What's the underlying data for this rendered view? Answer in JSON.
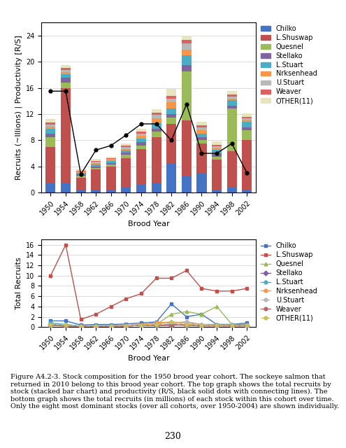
{
  "chart_data": [
    {
      "type": "bar",
      "stacked": true,
      "xlabel": "Brood Year",
      "ylabel": "Recruits (~Illions) | Productivity [R/S]",
      "categories": [
        "1950",
        "1954",
        "1958",
        "1962",
        "1966",
        "1970",
        "1974",
        "1978",
        "1982",
        "1986",
        "1990",
        "1994",
        "1998",
        "2002"
      ],
      "series": [
        {
          "name": "Chilko",
          "color": "#4472C4",
          "values": [
            1.5,
            1.5,
            0.5,
            0.5,
            0.5,
            0.8,
            1.2,
            1.5,
            4.5,
            2.5,
            3.0,
            0.5,
            0.8,
            0.5
          ]
        },
        {
          "name": "L.Shuswap",
          "color": "#C0504D",
          "values": [
            5.5,
            14.5,
            1.8,
            3.0,
            3.5,
            4.5,
            5.5,
            7.0,
            6.0,
            8.5,
            4.5,
            4.5,
            5.5,
            7.5
          ]
        },
        {
          "name": "Quesnel",
          "color": "#9BBB59",
          "values": [
            1.5,
            0.8,
            0.3,
            0.3,
            0.3,
            0.5,
            0.5,
            0.8,
            1.0,
            7.5,
            0.5,
            0.5,
            6.5,
            1.5
          ]
        },
        {
          "name": "Stellako",
          "color": "#8064A2",
          "values": [
            0.5,
            0.8,
            0.2,
            0.2,
            0.2,
            0.3,
            0.5,
            0.5,
            0.5,
            1.0,
            0.5,
            0.5,
            0.5,
            0.5
          ]
        },
        {
          "name": "L.Stuart",
          "color": "#4BACC6",
          "values": [
            0.8,
            0.5,
            0.2,
            0.3,
            0.3,
            0.3,
            0.5,
            0.8,
            0.8,
            1.5,
            0.5,
            0.5,
            0.8,
            0.8
          ]
        },
        {
          "name": "Nrksenhead",
          "color": "#F79646",
          "values": [
            0.3,
            0.3,
            0.1,
            0.2,
            0.2,
            0.3,
            0.5,
            0.8,
            1.0,
            0.8,
            0.5,
            0.3,
            0.3,
            0.3
          ]
        },
        {
          "name": "U.Stuart",
          "color": "#B8B8B8",
          "values": [
            0.3,
            0.3,
            0.1,
            0.2,
            0.2,
            0.3,
            0.3,
            0.5,
            0.5,
            1.0,
            0.5,
            0.3,
            0.3,
            0.3
          ]
        },
        {
          "name": "Weaver",
          "color": "#E06060",
          "values": [
            0.3,
            0.3,
            0.1,
            0.1,
            0.1,
            0.2,
            0.3,
            0.3,
            0.5,
            0.5,
            0.3,
            0.2,
            0.3,
            0.2
          ]
        },
        {
          "name": "OTHER(11)",
          "color": "#E8E4C0",
          "values": [
            0.5,
            0.5,
            0.2,
            0.3,
            0.2,
            0.3,
            0.5,
            0.5,
            1.0,
            0.7,
            0.5,
            0.5,
            0.5,
            0.5
          ]
        },
        {
          "type": "line",
          "color": "#000000",
          "marker": "circle",
          "line_style": "solid",
          "values": [
            15.5,
            15.5,
            2.8,
            6.5,
            7.2,
            8.8,
            10.5,
            10.5,
            8.0,
            13.5,
            6.0,
            6.0,
            7.5,
            3.0
          ]
        }
      ],
      "ylim": [
        0,
        26
      ],
      "yticks": [
        0,
        4,
        8,
        12,
        16,
        20,
        24
      ],
      "grid": true,
      "legend": "upper left"
    },
    {
      "type": "line",
      "xlabel": "Brood Year",
      "ylabel": "Total Recruits",
      "categories": [
        "1950",
        "1954",
        "1958",
        "1962",
        "1966",
        "1970",
        "1974",
        "1978",
        "1982",
        "1986",
        "1990",
        "1994",
        "1998",
        "2002"
      ],
      "series": [
        {
          "name": "Chilko",
          "color": "#4472C4",
          "marker": "square",
          "line_style": "solid",
          "values": [
            1.2,
            1.2,
            0.4,
            0.5,
            0.5,
            0.6,
            0.8,
            1.0,
            4.5,
            2.0,
            2.5,
            0.5,
            0.5,
            0.8
          ]
        },
        {
          "name": "L.Shuswap",
          "color": "#C0504D",
          "marker": "square",
          "line_style": "solid",
          "values": [
            10.0,
            16.0,
            1.5,
            2.5,
            4.0,
            5.5,
            6.5,
            9.5,
            9.5,
            11.0,
            7.5,
            7.0,
            7.0,
            7.5
          ]
        },
        {
          "name": "Quesnel",
          "color": "#9BBB59",
          "marker": "triangle",
          "line_style": "solid",
          "values": [
            0.5,
            0.3,
            0.1,
            0.1,
            0.2,
            0.3,
            0.3,
            0.5,
            2.5,
            3.0,
            2.5,
            4.0,
            0.5,
            0.3
          ]
        },
        {
          "name": "Stellako",
          "color": "#8064A2",
          "marker": "diamond",
          "line_style": "solid",
          "values": [
            0.5,
            0.3,
            0.1,
            0.1,
            0.1,
            0.2,
            0.3,
            0.3,
            0.3,
            0.5,
            0.3,
            0.3,
            0.3,
            0.3
          ]
        },
        {
          "name": "L.Stuart",
          "color": "#4BACC6",
          "marker": "circle",
          "line_style": "solid",
          "values": [
            0.8,
            0.5,
            0.2,
            0.3,
            0.3,
            0.3,
            0.5,
            0.8,
            0.8,
            1.0,
            0.5,
            0.5,
            0.5,
            0.5
          ]
        },
        {
          "name": "Nrksenhead",
          "color": "#F79646",
          "marker": "circle",
          "line_style": "solid",
          "values": [
            0.3,
            0.2,
            0.1,
            0.2,
            0.2,
            0.3,
            0.5,
            0.8,
            1.0,
            0.8,
            0.5,
            0.3,
            0.3,
            0.3
          ]
        },
        {
          "name": "U.Stuart",
          "color": "#B8B8B8",
          "marker": "circle",
          "line_style": "dashed",
          "values": [
            0.3,
            0.3,
            0.1,
            0.2,
            0.2,
            0.3,
            0.3,
            0.5,
            0.5,
            1.0,
            0.5,
            0.3,
            0.3,
            0.3
          ]
        },
        {
          "name": "Weaver",
          "color": "#C06060",
          "marker": "circle",
          "line_style": "solid",
          "values": [
            0.3,
            0.2,
            0.1,
            0.1,
            0.1,
            0.2,
            0.3,
            0.3,
            0.5,
            0.3,
            0.2,
            0.2,
            0.2,
            0.2
          ]
        },
        {
          "name": "OTHER(11)",
          "color": "#C8C060",
          "marker": "circle",
          "line_style": "dashed",
          "values": [
            0.5,
            0.4,
            0.1,
            0.2,
            0.2,
            0.2,
            0.3,
            0.5,
            1.0,
            0.5,
            0.3,
            0.3,
            0.3,
            0.3
          ]
        }
      ],
      "ylim": [
        0,
        17
      ],
      "yticks": [
        0,
        2,
        4,
        6,
        8,
        10,
        12,
        14,
        16
      ],
      "grid": true,
      "legend": "upper left"
    }
  ],
  "caption": "Figure A4.2-3. Stock composition for the 1950 brood year cohort. The sockeye salmon that returned in 2010 belong to this brood year cohort. The top graph shows the total recruits by stock (stacked bar chart) and productivity (R/S, black solid dots with connecting lines). The bottom graph shows the total recruits (in millions) of each stock within this cohort over time. Only the eight most dominant stocks (over all cohorts, over 1950-2004) are shown individually.",
  "page_number": "230"
}
